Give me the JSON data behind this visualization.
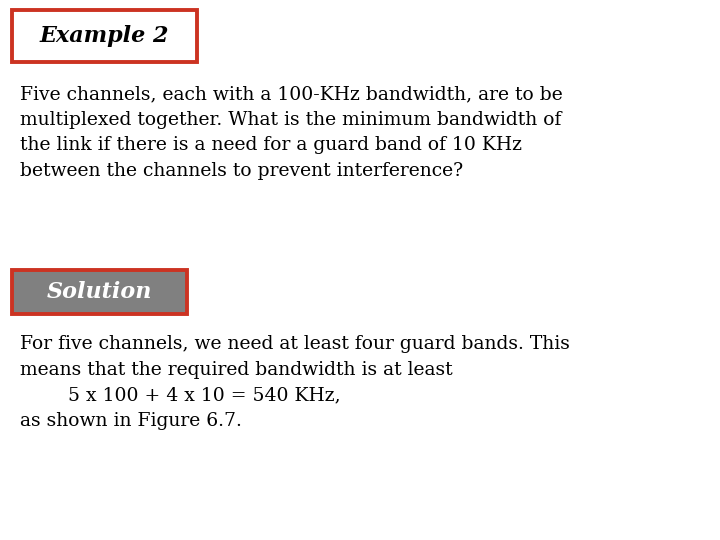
{
  "background_color": "#ffffff",
  "title_text": "Example 2",
  "title_box_color": "#cc3322",
  "title_font_style": "italic",
  "title_font_weight": "bold",
  "title_font_size": 16,
  "body_text_1": "Five channels, each with a 100-KHz bandwidth, are to be\nmultiplexed together. What is the minimum bandwidth of\nthe link if there is a need for a guard band of 10 KHz\nbetween the channels to prevent interference?",
  "body_font_size": 13.5,
  "solution_text": "Solution",
  "solution_box_bg": "#808080",
  "solution_box_border": "#cc3322",
  "solution_font_style": "italic",
  "solution_font_weight": "bold",
  "solution_font_size": 16,
  "body_text_2_line1": "For five channels, we need at least four guard bands. This",
  "body_text_2_line2": "means that the required bandwidth is at least",
  "body_text_2_line3": "        5 x 100 + 4 x 10 = 540 KHz,",
  "body_text_2_line4": "as shown in Figure 6.7."
}
